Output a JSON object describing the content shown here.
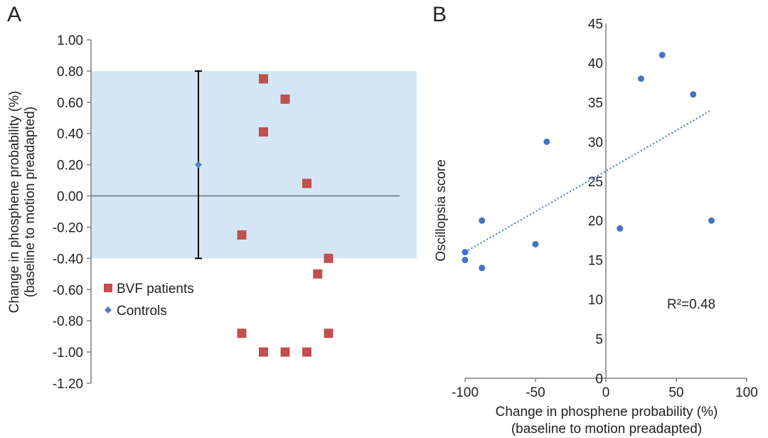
{
  "colors": {
    "band": "#d4e6f6",
    "bvf": "#c0504d",
    "control": "#4f81bd",
    "point": "#4472c4",
    "trend": "#4472c4",
    "axis": "#7f7f7f",
    "zero_line": "#7f8c97",
    "error_bar": "#000000"
  },
  "chart_data": [
    {
      "panel": "A",
      "type": "scatter",
      "ylabel_line1": "Change in phosphene probability (%)",
      "ylabel_line2": "(baseline to motion preadapted)",
      "ylim": [
        -1.2,
        1.0
      ],
      "y_ticks": [
        "1.00",
        "0.80",
        "0.60",
        "0.40",
        "0.20",
        "0.00",
        "-0.20",
        "-0.40",
        "-0.60",
        "-0.80",
        "-1.00",
        "-1.20"
      ],
      "y_tick_values": [
        1.0,
        0.8,
        0.6,
        0.4,
        0.2,
        0.0,
        -0.2,
        -0.4,
        -0.6,
        -0.8,
        -1.0,
        -1.2
      ],
      "shaded_band": [
        -0.4,
        0.8
      ],
      "zero_line": 0.0,
      "legend": [
        "BVF patients",
        "Controls"
      ],
      "legend_position": "lower-left",
      "series": [
        {
          "name": "BVF patients",
          "marker": "square",
          "points": [
            {
              "x": 2,
              "y": -0.25
            },
            {
              "x": 2,
              "y": -0.88
            },
            {
              "x": 3,
              "y": 0.75
            },
            {
              "x": 3,
              "y": 0.41
            },
            {
              "x": 3,
              "y": -1.0
            },
            {
              "x": 4,
              "y": 0.62
            },
            {
              "x": 4,
              "y": -1.0
            },
            {
              "x": 5,
              "y": 0.08
            },
            {
              "x": 5,
              "y": -1.0
            },
            {
              "x": 5.5,
              "y": -0.5
            },
            {
              "x": 6,
              "y": -0.4
            },
            {
              "x": 6,
              "y": -0.88
            }
          ]
        },
        {
          "name": "Controls",
          "marker": "diamond",
          "points": [
            {
              "x": 0,
              "y": 0.2,
              "err_low": -0.4,
              "err_high": 0.8
            }
          ]
        }
      ]
    },
    {
      "panel": "B",
      "type": "scatter",
      "xlabel_line1": "Change in phosphene probability (%)",
      "xlabel_line2": "(baseline to motion preadapted)",
      "ylabel": "Oscillopsia score",
      "xlim": [
        -100,
        100
      ],
      "ylim": [
        0,
        45
      ],
      "x_ticks": [
        -100,
        -50,
        0,
        50,
        100
      ],
      "y_ticks": [
        0,
        5,
        10,
        15,
        20,
        25,
        30,
        35,
        40,
        45
      ],
      "annotation": "R²=0.48",
      "trendline": {
        "x": [
          -100,
          75
        ],
        "y": [
          16,
          34
        ],
        "style": "dotted"
      },
      "x": [
        -100,
        -100,
        -88,
        -88,
        -50,
        -42,
        10,
        25,
        40,
        62,
        75
      ],
      "y": [
        16,
        15,
        20,
        14,
        17,
        30,
        19,
        38,
        41,
        36,
        20
      ]
    }
  ]
}
